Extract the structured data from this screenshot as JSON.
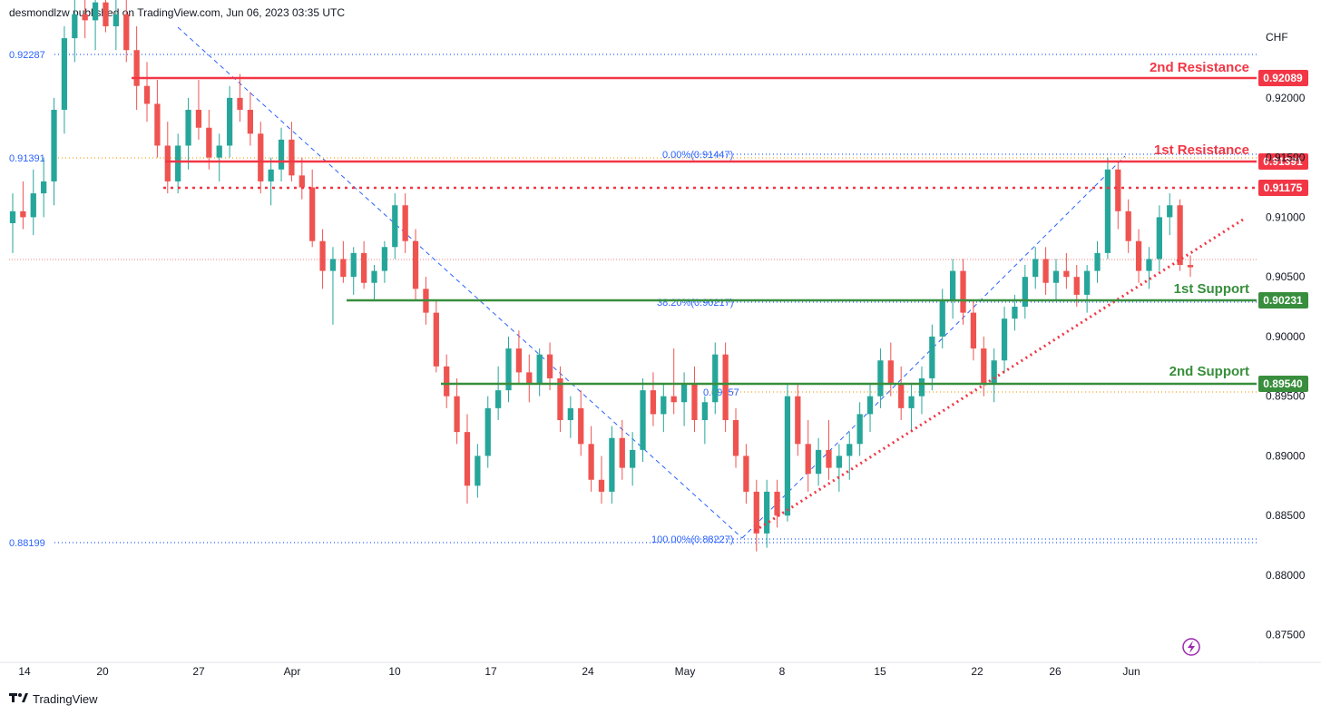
{
  "header": {
    "published": "desmondlzw published on TradingView.com, Jun 06, 2023 03:35 UTC"
  },
  "brand": {
    "logo_icon": "tradingview-logo-icon",
    "name": "TradingView"
  },
  "chart_data": {
    "type": "candlestick",
    "currency": "CHF",
    "y_ticks": [
      "0.92000",
      "0.91500",
      "0.91000",
      "0.90500",
      "0.90000",
      "0.89500",
      "0.89000",
      "0.88500",
      "0.88000",
      "0.87500"
    ],
    "ylim": [
      0.8727,
      0.9263
    ],
    "x_ticks": [
      "14",
      "20",
      "27",
      "Apr",
      "10",
      "17",
      "24",
      "May",
      "8",
      "15",
      "22",
      "26",
      "Jun"
    ],
    "levels": [
      {
        "name": "2nd Resistance",
        "value": "0.92089",
        "color": "#f23645"
      },
      {
        "name": "1st Resistance",
        "value": "0.91391",
        "color": "#f23645"
      },
      {
        "name": "",
        "value": "0.91175",
        "color": "#f23645",
        "style": "dotted"
      },
      {
        "name": "1st Support",
        "value": "0.90231",
        "color": "#388e3c"
      },
      {
        "name": "2nd Support",
        "value": "0.89540",
        "color": "#388e3c"
      }
    ],
    "left_price_labels": [
      "0.92287",
      "0.91391",
      "0.88199"
    ],
    "fib_labels": [
      "0.00%(0.91447)",
      "38.20%(0.90217)",
      "100.00%(0.88227)",
      "0.89457"
    ],
    "trendline": "ascending dotted support from early May low",
    "colors": {
      "up": "#26a69a",
      "down": "#ef5350"
    },
    "candles": [
      [
        0.9095,
        0.912,
        0.907,
        0.9105
      ],
      [
        0.9105,
        0.913,
        0.909,
        0.91
      ],
      [
        0.91,
        0.914,
        0.9085,
        0.912
      ],
      [
        0.912,
        0.915,
        0.91,
        0.913
      ],
      [
        0.913,
        0.92,
        0.911,
        0.919
      ],
      [
        0.919,
        0.926,
        0.917,
        0.925
      ],
      [
        0.925,
        0.929,
        0.923,
        0.927
      ],
      [
        0.927,
        0.93,
        0.925,
        0.9265
      ],
      [
        0.9265,
        0.929,
        0.924,
        0.928
      ],
      [
        0.928,
        0.93,
        0.9255,
        0.926
      ],
      [
        0.926,
        0.9285,
        0.924,
        0.927
      ],
      [
        0.927,
        0.929,
        0.923,
        0.924
      ],
      [
        0.924,
        0.926,
        0.919,
        0.921
      ],
      [
        0.921,
        0.923,
        0.918,
        0.9195
      ],
      [
        0.9195,
        0.9215,
        0.915,
        0.916
      ],
      [
        0.916,
        0.918,
        0.912,
        0.913
      ],
      [
        0.913,
        0.917,
        0.912,
        0.916
      ],
      [
        0.916,
        0.92,
        0.914,
        0.919
      ],
      [
        0.919,
        0.9215,
        0.9165,
        0.9175
      ],
      [
        0.9175,
        0.919,
        0.914,
        0.915
      ],
      [
        0.915,
        0.917,
        0.913,
        0.916
      ],
      [
        0.916,
        0.921,
        0.915,
        0.92
      ],
      [
        0.92,
        0.922,
        0.918,
        0.919
      ],
      [
        0.919,
        0.9205,
        0.916,
        0.917
      ],
      [
        0.917,
        0.918,
        0.912,
        0.913
      ],
      [
        0.913,
        0.915,
        0.911,
        0.914
      ],
      [
        0.914,
        0.9175,
        0.913,
        0.9165
      ],
      [
        0.9165,
        0.918,
        0.913,
        0.9135
      ],
      [
        0.9135,
        0.915,
        0.9115,
        0.9125
      ],
      [
        0.9125,
        0.914,
        0.9075,
        0.908
      ],
      [
        0.908,
        0.909,
        0.904,
        0.9055
      ],
      [
        0.9055,
        0.9075,
        0.901,
        0.9065
      ],
      [
        0.9065,
        0.908,
        0.9045,
        0.905
      ],
      [
        0.905,
        0.9075,
        0.9035,
        0.907
      ],
      [
        0.907,
        0.908,
        0.904,
        0.9045
      ],
      [
        0.9045,
        0.906,
        0.903,
        0.9055
      ],
      [
        0.9055,
        0.908,
        0.9045,
        0.9075
      ],
      [
        0.9075,
        0.912,
        0.9065,
        0.911
      ],
      [
        0.911,
        0.912,
        0.907,
        0.908
      ],
      [
        0.908,
        0.909,
        0.903,
        0.904
      ],
      [
        0.904,
        0.905,
        0.901,
        0.902
      ],
      [
        0.902,
        0.903,
        0.897,
        0.8975
      ],
      [
        0.8975,
        0.8985,
        0.894,
        0.895
      ],
      [
        0.895,
        0.8965,
        0.891,
        0.892
      ],
      [
        0.892,
        0.8935,
        0.886,
        0.8875
      ],
      [
        0.8875,
        0.891,
        0.8865,
        0.89
      ],
      [
        0.89,
        0.895,
        0.889,
        0.894
      ],
      [
        0.894,
        0.8975,
        0.893,
        0.8955
      ],
      [
        0.8955,
        0.9,
        0.8945,
        0.899
      ],
      [
        0.899,
        0.9005,
        0.896,
        0.897
      ],
      [
        0.897,
        0.8985,
        0.8945,
        0.896
      ],
      [
        0.896,
        0.899,
        0.895,
        0.8985
      ],
      [
        0.8985,
        0.8995,
        0.8955,
        0.8965
      ],
      [
        0.8965,
        0.8975,
        0.892,
        0.893
      ],
      [
        0.893,
        0.895,
        0.8915,
        0.894
      ],
      [
        0.894,
        0.8955,
        0.89,
        0.891
      ],
      [
        0.891,
        0.8925,
        0.887,
        0.888
      ],
      [
        0.888,
        0.89,
        0.886,
        0.887
      ],
      [
        0.887,
        0.8925,
        0.886,
        0.8915
      ],
      [
        0.8915,
        0.893,
        0.888,
        0.889
      ],
      [
        0.889,
        0.892,
        0.8875,
        0.8905
      ],
      [
        0.8905,
        0.8965,
        0.8895,
        0.8955
      ],
      [
        0.8955,
        0.897,
        0.8925,
        0.8935
      ],
      [
        0.8935,
        0.896,
        0.892,
        0.895
      ],
      [
        0.895,
        0.899,
        0.8935,
        0.8945
      ],
      [
        0.8945,
        0.897,
        0.8925,
        0.896
      ],
      [
        0.896,
        0.8975,
        0.892,
        0.893
      ],
      [
        0.893,
        0.895,
        0.891,
        0.8945
      ],
      [
        0.8945,
        0.8995,
        0.8935,
        0.8985
      ],
      [
        0.8985,
        0.8995,
        0.892,
        0.893
      ],
      [
        0.893,
        0.894,
        0.889,
        0.89
      ],
      [
        0.89,
        0.891,
        0.886,
        0.887
      ],
      [
        0.887,
        0.888,
        0.882,
        0.8835
      ],
      [
        0.8835,
        0.888,
        0.8823,
        0.887
      ],
      [
        0.887,
        0.888,
        0.884,
        0.885
      ],
      [
        0.885,
        0.896,
        0.8845,
        0.895
      ],
      [
        0.895,
        0.896,
        0.89,
        0.891
      ],
      [
        0.891,
        0.893,
        0.887,
        0.8885
      ],
      [
        0.8885,
        0.8915,
        0.8875,
        0.8905
      ],
      [
        0.8905,
        0.893,
        0.888,
        0.889
      ],
      [
        0.889,
        0.891,
        0.887,
        0.89
      ],
      [
        0.89,
        0.892,
        0.888,
        0.891
      ],
      [
        0.891,
        0.8945,
        0.89,
        0.8935
      ],
      [
        0.8935,
        0.896,
        0.892,
        0.895
      ],
      [
        0.895,
        0.899,
        0.894,
        0.898
      ],
      [
        0.898,
        0.8995,
        0.895,
        0.896
      ],
      [
        0.896,
        0.8975,
        0.893,
        0.894
      ],
      [
        0.894,
        0.896,
        0.892,
        0.895
      ],
      [
        0.895,
        0.8975,
        0.8935,
        0.8965
      ],
      [
        0.8965,
        0.901,
        0.8955,
        0.9
      ],
      [
        0.9,
        0.904,
        0.899,
        0.903
      ],
      [
        0.903,
        0.9065,
        0.9015,
        0.9055
      ],
      [
        0.9055,
        0.9065,
        0.901,
        0.902
      ],
      [
        0.902,
        0.903,
        0.898,
        0.899
      ],
      [
        0.899,
        0.9,
        0.895,
        0.896
      ],
      [
        0.896,
        0.899,
        0.8945,
        0.898
      ],
      [
        0.898,
        0.9025,
        0.897,
        0.9015
      ],
      [
        0.9015,
        0.9035,
        0.9005,
        0.9025
      ],
      [
        0.9025,
        0.906,
        0.9015,
        0.905
      ],
      [
        0.905,
        0.9075,
        0.904,
        0.9065
      ],
      [
        0.9065,
        0.9075,
        0.9035,
        0.9045
      ],
      [
        0.9045,
        0.9065,
        0.903,
        0.9055
      ],
      [
        0.9055,
        0.907,
        0.904,
        0.905
      ],
      [
        0.905,
        0.906,
        0.9025,
        0.9035
      ],
      [
        0.9035,
        0.906,
        0.902,
        0.9055
      ],
      [
        0.9055,
        0.908,
        0.9045,
        0.907
      ],
      [
        0.907,
        0.915,
        0.9065,
        0.914
      ],
      [
        0.914,
        0.9145,
        0.909,
        0.9105
      ],
      [
        0.9105,
        0.9115,
        0.907,
        0.908
      ],
      [
        0.908,
        0.909,
        0.9045,
        0.9055
      ],
      [
        0.9055,
        0.9075,
        0.904,
        0.9065
      ],
      [
        0.9065,
        0.911,
        0.9055,
        0.91
      ],
      [
        0.91,
        0.912,
        0.9085,
        0.911
      ],
      [
        0.911,
        0.9115,
        0.9055,
        0.906
      ],
      [
        0.906,
        0.9068,
        0.905,
        0.9058
      ]
    ]
  }
}
